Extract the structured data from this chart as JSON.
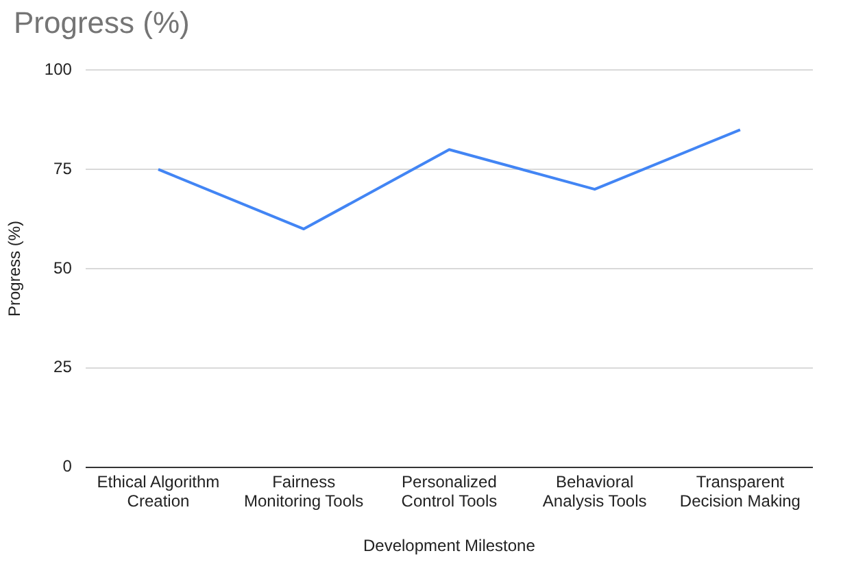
{
  "chart_data": {
    "type": "line",
    "title": "Progress (%)",
    "xlabel": "Development Milestone",
    "ylabel": "Progress (%)",
    "categories": [
      "Ethical Algorithm Creation",
      "Fairness Monitoring Tools",
      "Personalized Control Tools",
      "Behavioral Analysis Tools",
      "Transparent Decision Making"
    ],
    "series": [
      {
        "color": "#4285f4",
        "values": [
          75,
          60,
          80,
          70,
          85
        ]
      }
    ],
    "ylim": [
      0,
      100
    ],
    "yticks": [
      0,
      25,
      50,
      75,
      100
    ],
    "grid": "y",
    "legend": false,
    "marker": "none",
    "line_style": "solid"
  }
}
